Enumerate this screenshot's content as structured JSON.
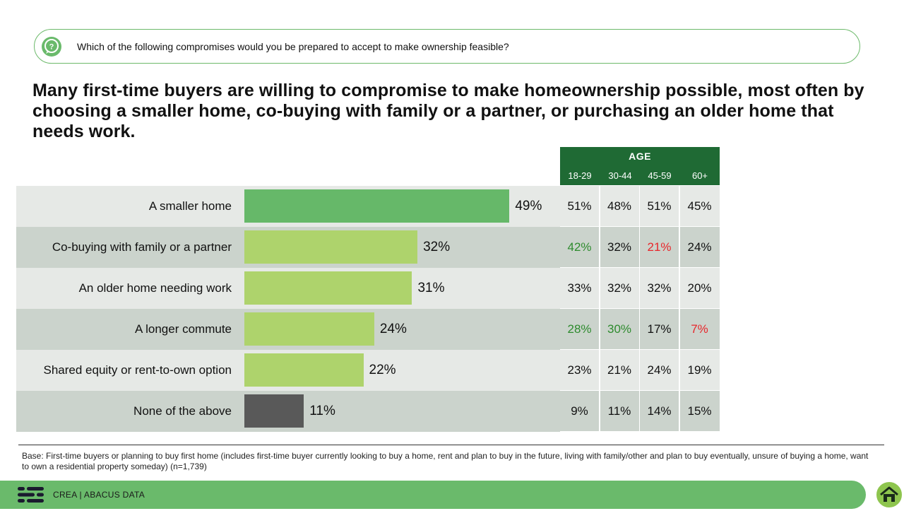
{
  "question": {
    "icon": "question-bubble-icon",
    "text": "Which of the following compromises would you be prepared to accept to make ownership feasible?"
  },
  "headline": "Many first-time buyers are willing to compromise to make homeownership possible, most often by choosing a smaller home, co-buying with family or a partner, or purchasing an older home that needs work.",
  "colors": {
    "accent_green": "#6aba6b",
    "bar_top": "#66b869",
    "bar_light": "#aed36c",
    "bar_none": "#595959",
    "header_dark_green": "#1f6a34",
    "row_bg_light": "#e6e9e6",
    "row_bg_dark": "#cbd3cc",
    "high_green": "#2e8b2e",
    "low_red": "#e8262b"
  },
  "chart_data": {
    "type": "bar",
    "orientation": "horizontal",
    "title": "Many first-time buyers are willing to compromise to make homeownership possible",
    "categories": [
      "A smaller home",
      "Co-buying with family or a partner",
      "An older home needing work",
      "A longer commute",
      "Shared equity or rent-to-own option",
      "None of the above"
    ],
    "values": [
      49,
      32,
      31,
      24,
      22,
      11
    ],
    "value_labels": [
      "49%",
      "32%",
      "31%",
      "24%",
      "22%",
      "11%"
    ],
    "xlim": [
      0,
      100
    ],
    "age_table": {
      "title": "AGE",
      "columns": [
        "18-29",
        "30-44",
        "45-59",
        "60+"
      ],
      "rows": [
        {
          "values": [
            "51%",
            "48%",
            "51%",
            "45%"
          ],
          "flags": [
            "",
            "",
            "",
            ""
          ]
        },
        {
          "values": [
            "42%",
            "32%",
            "21%",
            "24%"
          ],
          "flags": [
            "high",
            "",
            "low",
            ""
          ]
        },
        {
          "values": [
            "33%",
            "32%",
            "32%",
            "20%"
          ],
          "flags": [
            "",
            "",
            "",
            ""
          ]
        },
        {
          "values": [
            "28%",
            "30%",
            "17%",
            "7%"
          ],
          "flags": [
            "high",
            "high",
            "",
            "low"
          ]
        },
        {
          "values": [
            "23%",
            "21%",
            "24%",
            "19%"
          ],
          "flags": [
            "",
            "",
            "",
            ""
          ]
        },
        {
          "values": [
            "9%",
            "11%",
            "14%",
            "15%"
          ],
          "flags": [
            "",
            "",
            "",
            ""
          ]
        }
      ]
    }
  },
  "footnote": "Base: First-time buyers or planning to buy first home (includes first-time buyer currently looking to buy a home, rent and plan to buy in the future, living with family/other and plan to buy eventually, unsure of buying a home, want to own a residential property someday) (n=1,739)",
  "footer": {
    "brand_text": "CREA  |  ABACUS DATA",
    "logo_icon": "abacus-logo-icon",
    "home_icon": "house-icon"
  }
}
